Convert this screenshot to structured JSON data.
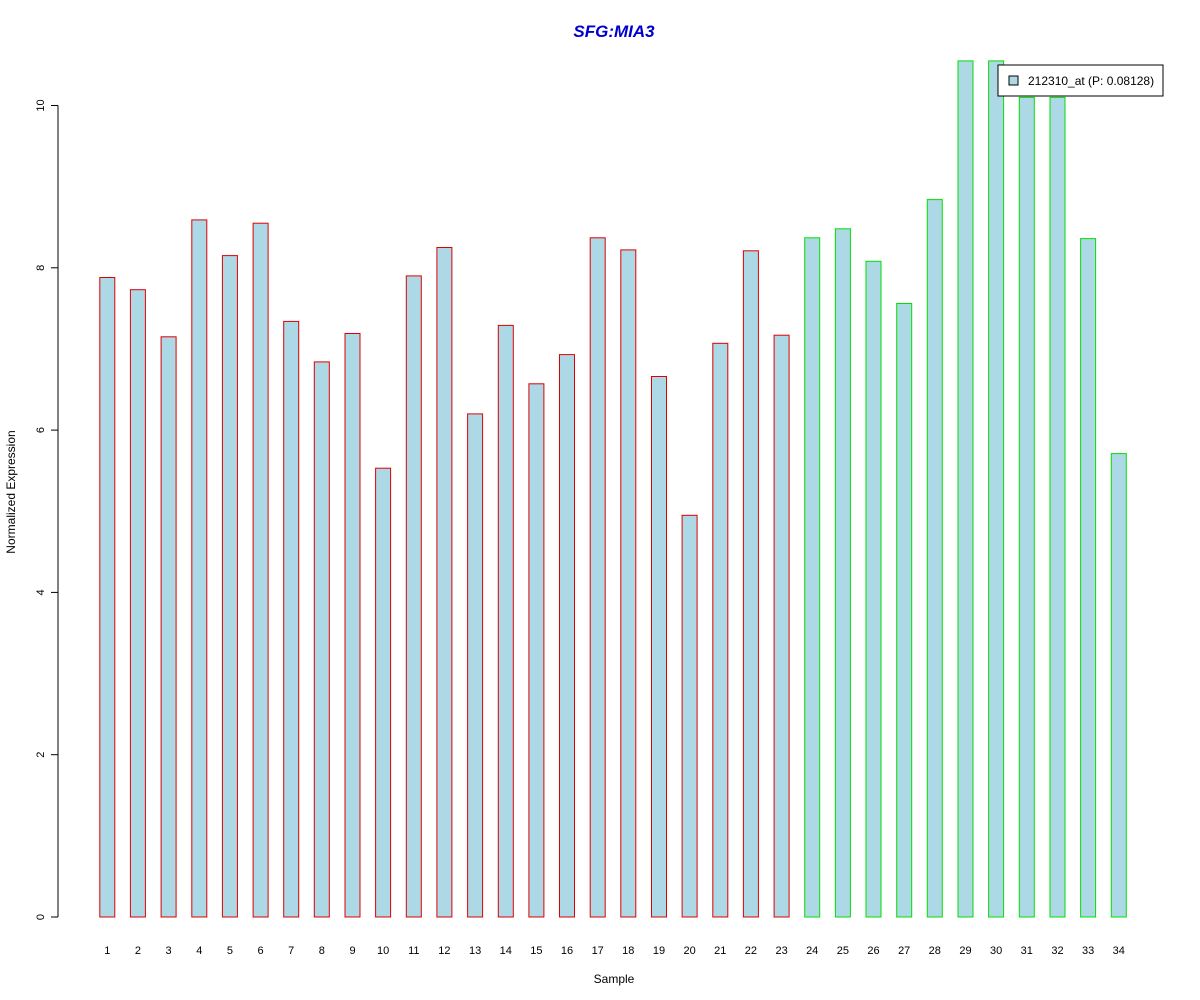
{
  "chart_data": {
    "type": "bar",
    "title": "SFG:MIA3",
    "xlabel": "Sample",
    "ylabel": "Normalized Expression",
    "categories": [
      "1",
      "2",
      "3",
      "4",
      "5",
      "6",
      "7",
      "8",
      "9",
      "10",
      "11",
      "12",
      "13",
      "14",
      "15",
      "16",
      "17",
      "18",
      "19",
      "20",
      "21",
      "22",
      "23",
      "24",
      "25",
      "26",
      "27",
      "28",
      "29",
      "30",
      "31",
      "32",
      "33",
      "34"
    ],
    "values": [
      7.88,
      7.73,
      7.15,
      8.59,
      8.15,
      8.55,
      7.34,
      6.84,
      7.19,
      5.53,
      7.9,
      8.25,
      6.2,
      7.29,
      6.57,
      6.93,
      8.37,
      8.22,
      6.66,
      4.95,
      7.07,
      8.21,
      7.17,
      8.37,
      8.48,
      8.08,
      7.56,
      8.84,
      10.55,
      10.55,
      10.1,
      10.1,
      8.36,
      5.71
    ],
    "border_colors": [
      "#e00000",
      "#e00000",
      "#e00000",
      "#e00000",
      "#e00000",
      "#e00000",
      "#e00000",
      "#e00000",
      "#e00000",
      "#e00000",
      "#e00000",
      "#e00000",
      "#e00000",
      "#e00000",
      "#e00000",
      "#e00000",
      "#e00000",
      "#e00000",
      "#e00000",
      "#e00000",
      "#e00000",
      "#e00000",
      "#e00000",
      "#00e000",
      "#00e000",
      "#00e000",
      "#00e000",
      "#00e000",
      "#00e000",
      "#00e000",
      "#00e000",
      "#00e000",
      "#00e000",
      "#00e000"
    ],
    "fill_color": "#add8e6",
    "title_color": "#0000cc",
    "yticks": [
      0,
      2,
      4,
      6,
      8,
      10
    ],
    "ylim": [
      0,
      10.55
    ],
    "grid": false,
    "legend": {
      "position": "top-right",
      "label": "212310_at (P: 0.08128)"
    }
  }
}
